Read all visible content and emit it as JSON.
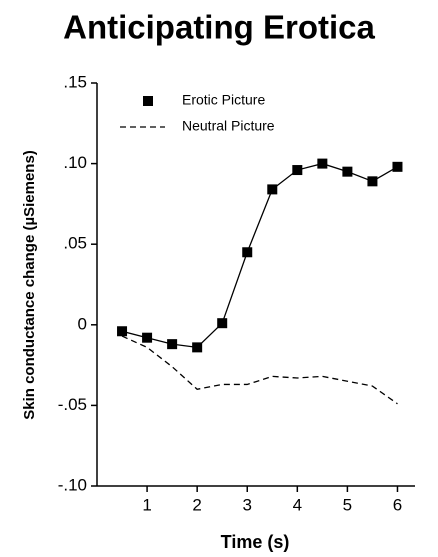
{
  "chart_data": {
    "type": "line",
    "title": "Anticipating Erotica",
    "x_label": "Time (s)",
    "y_label": "Skin conductance change (µSiemens)",
    "xlim": [
      0,
      6.35
    ],
    "xticks": [
      1,
      2,
      3,
      4,
      5,
      6
    ],
    "ylim": [
      -0.1,
      0.15
    ],
    "yticks": [
      {
        "value": -0.1,
        "label": "-.10"
      },
      {
        "value": -0.05,
        "label": "-.05"
      },
      0,
      {
        "value": 0.05,
        "label": ".05"
      },
      {
        "value": 0.1,
        "label": ".10"
      },
      {
        "value": 0.15,
        "label": ".15"
      }
    ],
    "x": [
      0.5,
      1,
      1.5,
      2,
      2.5,
      3,
      3.5,
      4,
      4.5,
      5,
      5.5,
      6
    ],
    "legend": "upper left",
    "series": [
      {
        "name": "Erotic Picture",
        "color": "#000000",
        "style": "solid",
        "marker": "square",
        "values": [
          -0.004,
          -0.008,
          -0.012,
          -0.014,
          0.001,
          0.045,
          0.084,
          0.096,
          0.1,
          0.095,
          0.089,
          0.098
        ]
      },
      {
        "name": "Neutral Picture",
        "color": "#000000",
        "style": "dashed",
        "marker": "none",
        "values": [
          -0.007,
          -0.014,
          -0.026,
          -0.04,
          -0.037,
          -0.037,
          -0.032,
          -0.033,
          -0.032,
          -0.035,
          -0.038,
          -0.049
        ]
      }
    ]
  }
}
